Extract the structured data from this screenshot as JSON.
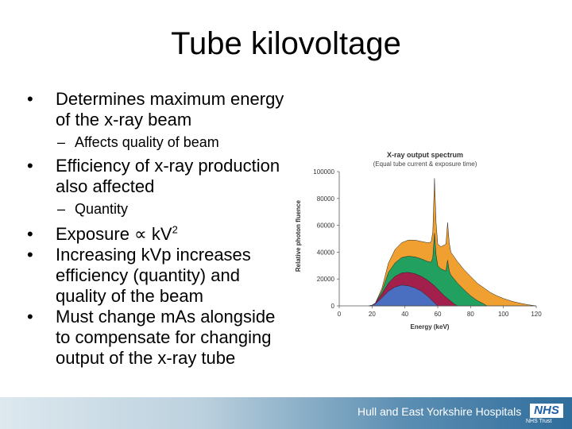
{
  "slide": {
    "title": "Tube kilovoltage",
    "bullets": [
      {
        "text": "Determines maximum energy of the x-ray beam",
        "sub": "Affects quality of beam"
      },
      {
        "text": "Efficiency of x-ray production also affected",
        "sub": "Quantity"
      },
      {
        "text_prefix": "Exposure ∝ kV",
        "superscript": "2"
      },
      {
        "text": "Increasing kVp increases efficiency (quantity) and quality of the beam"
      },
      {
        "text": "Must change mAs alongside to compensate for changing output of the x-ray tube"
      }
    ],
    "bullet_symbol": "•",
    "sub_symbol": "–"
  },
  "footer": {
    "organisation": "Hull and East Yorkshire Hospitals",
    "logo_text": "NHS",
    "logo_subtext": "NHS Trust"
  },
  "chart_data": {
    "type": "area",
    "title": "X-ray output spectrum",
    "subtitle": "(Equal tube current & exposure time)",
    "xlabel": "Energy (keV)",
    "ylabel": "Relative photon fluence",
    "xlim": [
      0,
      120
    ],
    "ylim": [
      0,
      100000
    ],
    "x_ticks": [
      0,
      20,
      40,
      60,
      80,
      100,
      120
    ],
    "y_ticks": [
      0,
      20000,
      40000,
      60000,
      80000,
      100000
    ],
    "y_tick_labels": [
      "0",
      "20000",
      "40000",
      "60000",
      "80000",
      "100000"
    ],
    "grid": false,
    "series": [
      {
        "color": "#f0a030",
        "points": [
          [
            18,
            0
          ],
          [
            20,
            500
          ],
          [
            22,
            2000
          ],
          [
            26,
            13000
          ],
          [
            30,
            32000
          ],
          [
            34,
            42000
          ],
          [
            38,
            47000
          ],
          [
            42,
            49000
          ],
          [
            46,
            49000
          ],
          [
            50,
            48000
          ],
          [
            54,
            47000
          ],
          [
            56,
            47500
          ],
          [
            57,
            55000
          ],
          [
            58,
            95000
          ],
          [
            59,
            62000
          ],
          [
            60,
            46000
          ],
          [
            62,
            44000
          ],
          [
            65,
            46000
          ],
          [
            66,
            62000
          ],
          [
            67,
            47000
          ],
          [
            68,
            40000
          ],
          [
            72,
            33000
          ],
          [
            76,
            27000
          ],
          [
            80,
            22000
          ],
          [
            84,
            17000
          ],
          [
            88,
            13500
          ],
          [
            92,
            10000
          ],
          [
            96,
            7500
          ],
          [
            100,
            5500
          ],
          [
            105,
            3500
          ],
          [
            110,
            2000
          ],
          [
            115,
            800
          ],
          [
            120,
            0
          ]
        ]
      },
      {
        "color": "#22a060",
        "points": [
          [
            18,
            0
          ],
          [
            20,
            500
          ],
          [
            22,
            2000
          ],
          [
            26,
            11000
          ],
          [
            30,
            25000
          ],
          [
            34,
            32000
          ],
          [
            38,
            36000
          ],
          [
            42,
            37000
          ],
          [
            46,
            36500
          ],
          [
            50,
            35000
          ],
          [
            54,
            33000
          ],
          [
            56,
            32500
          ],
          [
            57,
            36000
          ],
          [
            58,
            54000
          ],
          [
            59,
            38000
          ],
          [
            60,
            30000
          ],
          [
            62,
            27500
          ],
          [
            65,
            26000
          ],
          [
            66,
            34000
          ],
          [
            67,
            26000
          ],
          [
            68,
            23000
          ],
          [
            72,
            17000
          ],
          [
            76,
            12000
          ],
          [
            80,
            7500
          ],
          [
            84,
            4000
          ],
          [
            88,
            1500
          ],
          [
            90,
            0
          ]
        ]
      },
      {
        "color": "#a3204c",
        "points": [
          [
            18,
            0
          ],
          [
            20,
            500
          ],
          [
            22,
            2000
          ],
          [
            26,
            9000
          ],
          [
            30,
            17000
          ],
          [
            34,
            22000
          ],
          [
            38,
            24500
          ],
          [
            42,
            25000
          ],
          [
            46,
            24000
          ],
          [
            50,
            22000
          ],
          [
            54,
            19000
          ],
          [
            56,
            17000
          ],
          [
            58,
            15000
          ],
          [
            60,
            12500
          ],
          [
            62,
            10000
          ],
          [
            64,
            7500
          ],
          [
            66,
            5500
          ],
          [
            68,
            3500
          ],
          [
            70,
            1500
          ],
          [
            72,
            0
          ]
        ]
      },
      {
        "color": "#4a6fc0",
        "points": [
          [
            18,
            0
          ],
          [
            20,
            500
          ],
          [
            22,
            1500
          ],
          [
            26,
            6000
          ],
          [
            30,
            11000
          ],
          [
            34,
            14000
          ],
          [
            38,
            15500
          ],
          [
            42,
            15000
          ],
          [
            46,
            13500
          ],
          [
            50,
            11000
          ],
          [
            54,
            7000
          ],
          [
            57,
            3500
          ],
          [
            60,
            0
          ]
        ]
      }
    ]
  }
}
